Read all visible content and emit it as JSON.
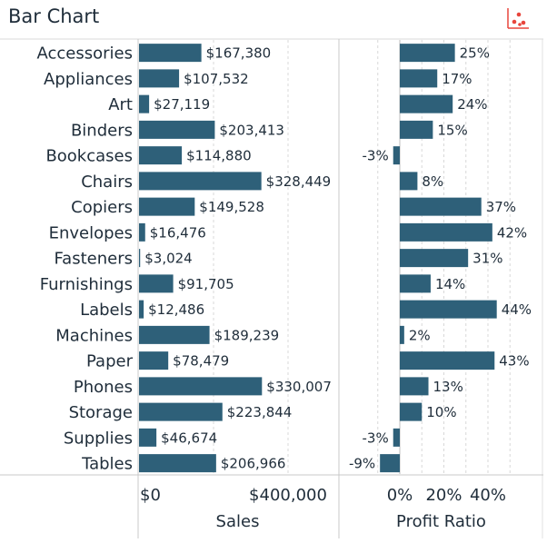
{
  "title": "Bar Chart",
  "icons": {
    "corner": "scatter-plot-icon"
  },
  "colors": {
    "bar": "#2e6079",
    "accent": "#e8453c",
    "text": "#1f2d3a",
    "gridline": "#d8d8d8",
    "divider": "#c8c8c8"
  },
  "chart_data": {
    "type": "bar",
    "orientation": "horizontal",
    "categories": [
      "Accessories",
      "Appliances",
      "Art",
      "Binders",
      "Bookcases",
      "Chairs",
      "Copiers",
      "Envelopes",
      "Fasteners",
      "Furnishings",
      "Labels",
      "Machines",
      "Paper",
      "Phones",
      "Storage",
      "Supplies",
      "Tables"
    ],
    "grid": true,
    "panels": [
      {
        "name": "sales",
        "xlabel": "Sales",
        "values": [
          167380,
          107532,
          27119,
          203413,
          114880,
          328449,
          149528,
          16476,
          3024,
          91705,
          12486,
          189239,
          78479,
          330007,
          223844,
          46674,
          206966
        ],
        "labels": [
          "$167,380",
          "$107,532",
          "$27,119",
          "$203,413",
          "$114,880",
          "$328,449",
          "$149,528",
          "$16,476",
          "$3,024",
          "$91,705",
          "$12,486",
          "$189,239",
          "$78,479",
          "$330,007",
          "$223,844",
          "$46,674",
          "$206,966"
        ],
        "ticks": [
          0,
          400000
        ],
        "tick_labels": [
          "$0",
          "$400,000"
        ],
        "xlim": [
          0,
          430000
        ]
      },
      {
        "name": "profit-ratio",
        "xlabel": "Profit Ratio",
        "values": [
          25,
          17,
          24,
          15,
          -3,
          8,
          37,
          42,
          31,
          14,
          44,
          2,
          43,
          13,
          10,
          -3,
          -9
        ],
        "labels": [
          "25%",
          "17%",
          "24%",
          "15%",
          "-3%",
          "8%",
          "37%",
          "42%",
          "31%",
          "14%",
          "44%",
          "2%",
          "43%",
          "13%",
          "10%",
          "-3%",
          "-9%"
        ],
        "ticks": [
          0,
          20,
          40
        ],
        "tick_labels": [
          "0%",
          "20%",
          "40%"
        ],
        "xlim": [
          -20,
          55
        ]
      }
    ]
  }
}
